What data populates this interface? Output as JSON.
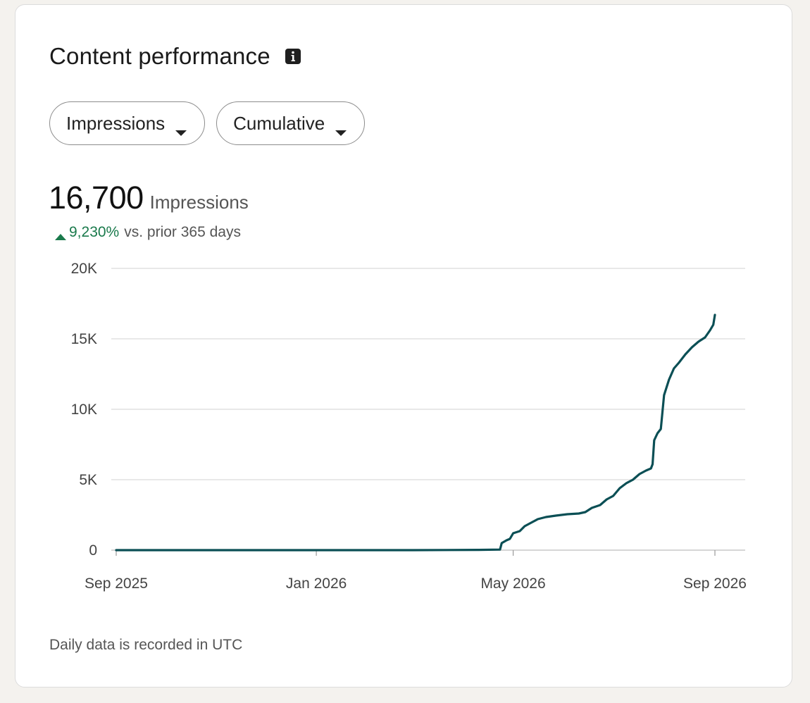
{
  "card": {
    "title": "Content performance",
    "info_icon": "info-icon",
    "dropdowns": {
      "metric_label": "Impressions",
      "mode_label": "Cumulative"
    },
    "summary": {
      "value": "16,700",
      "unit": "Impressions",
      "change": "9,230%",
      "change_label": "vs. prior 365 days",
      "change_color": "#1a7a4c"
    },
    "footnote": "Daily data is recorded in UTC"
  },
  "colors": {
    "line": "#0b4f55",
    "grid": "#d9d9d9",
    "background": "#ffffff",
    "page": "#f4f2ee"
  },
  "chart_data": {
    "type": "line",
    "title": "",
    "xlabel": "",
    "ylabel": "",
    "x_tick_labels": [
      "Sep 2025",
      "Jan 2026",
      "May 2026",
      "Sep 2026"
    ],
    "x_tick_dates": [
      "2025-09-01",
      "2026-01-01",
      "2026-05-01",
      "2026-09-01"
    ],
    "y_tick_labels": [
      "0",
      "5K",
      "10K",
      "15K",
      "20K"
    ],
    "y_tick_values": [
      0,
      5000,
      10000,
      15000,
      20000
    ],
    "ylim": [
      0,
      20000
    ],
    "xlim": [
      "2025-09-01",
      "2026-09-01"
    ],
    "grid": true,
    "series": [
      {
        "values": [
          [
            "2025-09-01",
            0
          ],
          [
            "2025-10-15",
            0
          ],
          [
            "2025-12-01",
            0
          ],
          [
            "2026-01-15",
            0
          ],
          [
            "2026-03-01",
            0
          ],
          [
            "2026-04-10",
            20
          ],
          [
            "2026-04-23",
            40
          ],
          [
            "2026-04-24",
            500
          ],
          [
            "2026-04-27",
            700
          ],
          [
            "2026-04-29",
            800
          ],
          [
            "2026-05-01",
            1200
          ],
          [
            "2026-05-05",
            1350
          ],
          [
            "2026-05-08",
            1700
          ],
          [
            "2026-05-12",
            1950
          ],
          [
            "2026-05-16",
            2200
          ],
          [
            "2026-05-21",
            2350
          ],
          [
            "2026-05-27",
            2450
          ],
          [
            "2026-06-03",
            2550
          ],
          [
            "2026-06-10",
            2600
          ],
          [
            "2026-06-14",
            2700
          ],
          [
            "2026-06-18",
            3000
          ],
          [
            "2026-06-23",
            3200
          ],
          [
            "2026-06-27",
            3600
          ],
          [
            "2026-07-01",
            3850
          ],
          [
            "2026-07-05",
            4400
          ],
          [
            "2026-07-09",
            4750
          ],
          [
            "2026-07-13",
            5000
          ],
          [
            "2026-07-17",
            5400
          ],
          [
            "2026-07-21",
            5650
          ],
          [
            "2026-07-24",
            5800
          ],
          [
            "2026-07-25",
            6100
          ],
          [
            "2026-07-26",
            7800
          ],
          [
            "2026-07-28",
            8300
          ],
          [
            "2026-07-30",
            8600
          ],
          [
            "2026-08-01",
            11000
          ],
          [
            "2026-08-04",
            12100
          ],
          [
            "2026-08-07",
            12900
          ],
          [
            "2026-08-10",
            13300
          ],
          [
            "2026-08-14",
            13900
          ],
          [
            "2026-08-18",
            14400
          ],
          [
            "2026-08-22",
            14800
          ],
          [
            "2026-08-26",
            15100
          ],
          [
            "2026-08-29",
            15600
          ],
          [
            "2026-08-31",
            16000
          ],
          [
            "2026-09-01",
            16700
          ]
        ]
      }
    ]
  }
}
